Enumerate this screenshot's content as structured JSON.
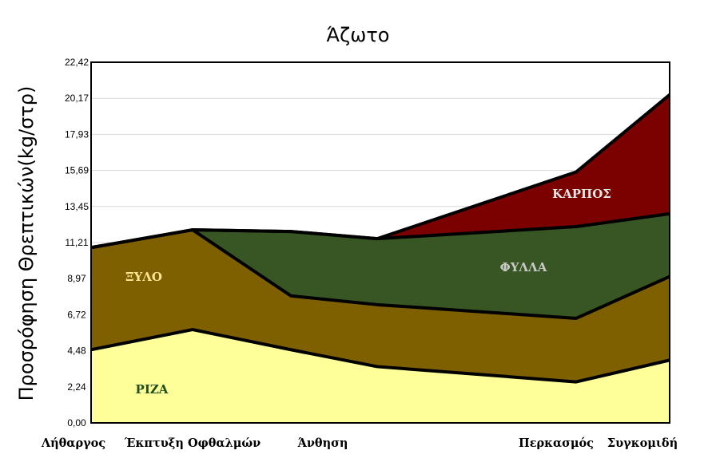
{
  "chart_data": {
    "type": "area",
    "stacked": true,
    "title": "Άζωτο",
    "ylabel": "Προσρόφηση Θρεπτικών(kg/στρ)",
    "xlabel": "",
    "x_tick_labels": [
      "Λήθαργος",
      "Έκπτυξη Οφθαλμών",
      "Άνθηση",
      "Περκασμός",
      "Συγκομιδή"
    ],
    "x": [
      0,
      1,
      2,
      3,
      4,
      5
    ],
    "y_ticks": [
      "0,00",
      "2,24",
      "4,48",
      "6,72",
      "8,97",
      "11,21",
      "13,45",
      "15,69",
      "17,93",
      "20,17",
      "22,42"
    ],
    "ylim": [
      0,
      22.42
    ],
    "grid": "horizontal",
    "series": [
      {
        "name": "ΡΙΖΑ",
        "values": [
          4.55,
          5.8,
          4.55,
          3.5,
          2.55,
          3.9
        ],
        "color": "#ffff99",
        "label_color": "#1f4e1f"
      },
      {
        "name": "ΞΥΛΟ",
        "values": [
          6.35,
          6.2,
          3.35,
          3.85,
          3.95,
          5.2
        ],
        "color": "#7f6000",
        "label_color": "#ffe699"
      },
      {
        "name": "ΦΥΛΛΑ",
        "values": [
          0,
          0,
          4.0,
          4.1,
          5.7,
          3.9
        ],
        "color": "#375623",
        "label_color": "#c9c9c9"
      },
      {
        "name": "ΚΑΡΠΟΣ",
        "values": [
          0,
          0,
          0,
          0,
          3.4,
          7.4
        ],
        "color": "#7b0000",
        "label_color": "#e7e6e6"
      }
    ]
  }
}
